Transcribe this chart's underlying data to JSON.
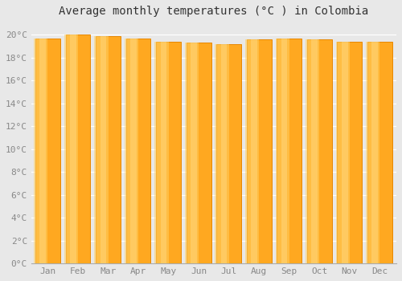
{
  "months": [
    "Jan",
    "Feb",
    "Mar",
    "Apr",
    "May",
    "Jun",
    "Jul",
    "Aug",
    "Sep",
    "Oct",
    "Nov",
    "Dec"
  ],
  "temperatures": [
    19.7,
    20.0,
    19.9,
    19.7,
    19.4,
    19.3,
    19.2,
    19.6,
    19.7,
    19.6,
    19.4,
    19.4
  ],
  "title": "Average monthly temperatures (°C ) in Colombia",
  "ylim": [
    0,
    21
  ],
  "yticks": [
    0,
    2,
    4,
    6,
    8,
    10,
    12,
    14,
    16,
    18,
    20
  ],
  "ytick_labels": [
    "0°C",
    "2°C",
    "4°C",
    "6°C",
    "8°C",
    "10°C",
    "12°C",
    "14°C",
    "16°C",
    "18°C",
    "20°C"
  ],
  "bar_color_main": "#FFA820",
  "bar_color_light": "#FFD060",
  "bar_color_dark": "#E88800",
  "background_color": "#e8e8e8",
  "grid_color": "#ffffff",
  "title_fontsize": 10,
  "tick_fontsize": 8,
  "title_color": "#333333",
  "tick_color": "#888888"
}
